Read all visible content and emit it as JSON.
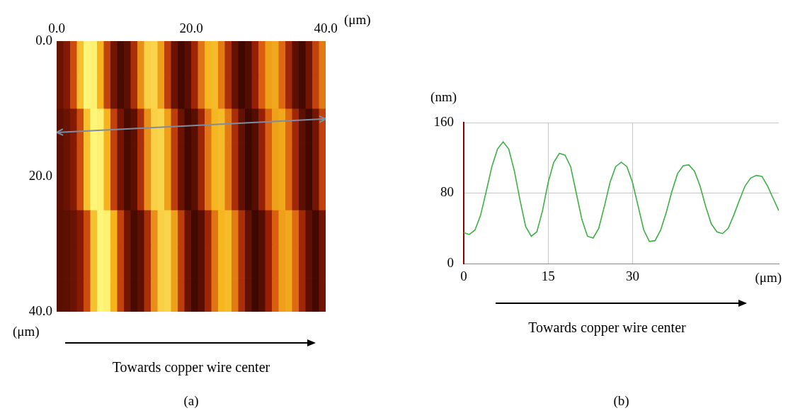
{
  "chart_data": [
    {
      "panel": "(a)",
      "type": "heatmap",
      "x_label": "(μm)",
      "y_label": "(μm)",
      "xlim": [
        0,
        40
      ],
      "ylim": [
        0,
        40
      ],
      "xticks": [
        {
          "value": 0,
          "label": "0.0"
        },
        {
          "value": 20,
          "label": "20.0"
        },
        {
          "value": 40,
          "label": "40.0"
        }
      ],
      "yticks": [
        {
          "value": 0,
          "label": "0.0"
        },
        {
          "value": 20,
          "label": "20.0"
        },
        {
          "value": 40,
          "label": "40.0"
        }
      ],
      "grid": false,
      "color": "#7d8ea3",
      "profile_line": {
        "x": [
          0,
          40
        ],
        "y": [
          13.5,
          11.5
        ]
      },
      "annotation": "Towards copper wire center",
      "cells": [
        [
          45,
          55,
          85,
          120,
          140,
          138,
          115,
          80,
          48,
          32,
          40,
          70,
          105,
          126,
          128,
          110,
          78,
          45,
          30,
          38,
          65,
          98,
          116,
          118,
          100,
          70,
          42,
          28,
          36,
          62,
          92,
          110,
          112,
          95,
          66,
          40,
          30,
          48,
          80,
          100
        ],
        [
          45,
          55,
          85,
          120,
          140,
          138,
          115,
          80,
          48,
          32,
          40,
          70,
          105,
          126,
          128,
          110,
          78,
          45,
          30,
          38,
          65,
          98,
          116,
          118,
          100,
          70,
          42,
          28,
          36,
          62,
          92,
          110,
          112,
          95,
          66,
          40,
          30,
          48,
          80,
          100
        ],
        [
          40,
          45,
          55,
          85,
          120,
          140,
          138,
          115,
          80,
          48,
          32,
          40,
          70,
          105,
          126,
          128,
          110,
          78,
          45,
          30,
          38,
          65,
          98,
          116,
          118,
          100,
          70,
          42,
          28,
          36,
          62,
          92,
          110,
          112,
          95,
          66,
          40,
          30,
          48,
          80
        ],
        [
          40,
          45,
          55,
          85,
          120,
          140,
          138,
          115,
          80,
          48,
          32,
          40,
          70,
          105,
          126,
          128,
          110,
          78,
          45,
          30,
          38,
          65,
          98,
          116,
          118,
          100,
          70,
          42,
          28,
          36,
          62,
          92,
          110,
          112,
          95,
          66,
          40,
          30,
          48,
          80
        ],
        [
          40,
          45,
          55,
          85,
          120,
          140,
          138,
          115,
          80,
          48,
          32,
          40,
          70,
          105,
          126,
          128,
          110,
          78,
          45,
          30,
          38,
          65,
          98,
          116,
          118,
          100,
          70,
          42,
          28,
          36,
          62,
          92,
          110,
          112,
          95,
          66,
          40,
          30,
          48,
          80
        ],
        [
          38,
          40,
          45,
          55,
          85,
          120,
          140,
          138,
          115,
          80,
          48,
          32,
          40,
          70,
          105,
          126,
          128,
          110,
          78,
          45,
          30,
          38,
          65,
          98,
          116,
          118,
          100,
          70,
          42,
          28,
          36,
          62,
          92,
          110,
          112,
          95,
          66,
          40,
          30,
          48
        ],
        [
          38,
          40,
          45,
          55,
          85,
          120,
          140,
          138,
          115,
          80,
          48,
          32,
          40,
          70,
          105,
          126,
          128,
          110,
          78,
          45,
          30,
          38,
          65,
          98,
          116,
          118,
          100,
          70,
          42,
          28,
          36,
          62,
          92,
          110,
          112,
          95,
          66,
          40,
          30,
          48
        ],
        [
          38,
          40,
          45,
          55,
          85,
          120,
          140,
          138,
          115,
          80,
          48,
          32,
          40,
          70,
          105,
          126,
          128,
          110,
          78,
          45,
          30,
          38,
          65,
          98,
          116,
          118,
          100,
          70,
          42,
          28,
          36,
          62,
          92,
          110,
          112,
          95,
          66,
          40,
          30,
          48
        ]
      ]
    },
    {
      "panel": "(b)",
      "type": "line",
      "x_label": "(μm)",
      "y_label": "(nm)",
      "xlim": [
        0,
        56
      ],
      "ylim": [
        0,
        160
      ],
      "xticks": [
        0,
        15,
        30
      ],
      "yticks": [
        0,
        80,
        160
      ],
      "grid": true,
      "color": "#3cb043",
      "annotation": "Towards copper wire center",
      "x": [
        0,
        1,
        2,
        3,
        4,
        5,
        6,
        7,
        8,
        9,
        10,
        11,
        12,
        13,
        14,
        15,
        16,
        17,
        18,
        19,
        20,
        21,
        22,
        23,
        24,
        25,
        26,
        27,
        28,
        29,
        30,
        31,
        32,
        33,
        34,
        35,
        36,
        37,
        38,
        39,
        40,
        41,
        42,
        43,
        44,
        45,
        46,
        47,
        48,
        49,
        50,
        51,
        52,
        53,
        54,
        55,
        56
      ],
      "values": [
        35,
        33,
        38,
        55,
        82,
        110,
        130,
        138,
        130,
        105,
        72,
        42,
        31,
        36,
        60,
        92,
        115,
        125,
        123,
        110,
        80,
        50,
        31,
        29,
        40,
        65,
        92,
        110,
        115,
        110,
        92,
        65,
        38,
        25,
        26,
        38,
        58,
        82,
        102,
        111,
        112,
        105,
        88,
        65,
        45,
        36,
        34,
        40,
        55,
        72,
        88,
        97,
        100,
        99,
        88,
        74,
        60
      ]
    }
  ]
}
